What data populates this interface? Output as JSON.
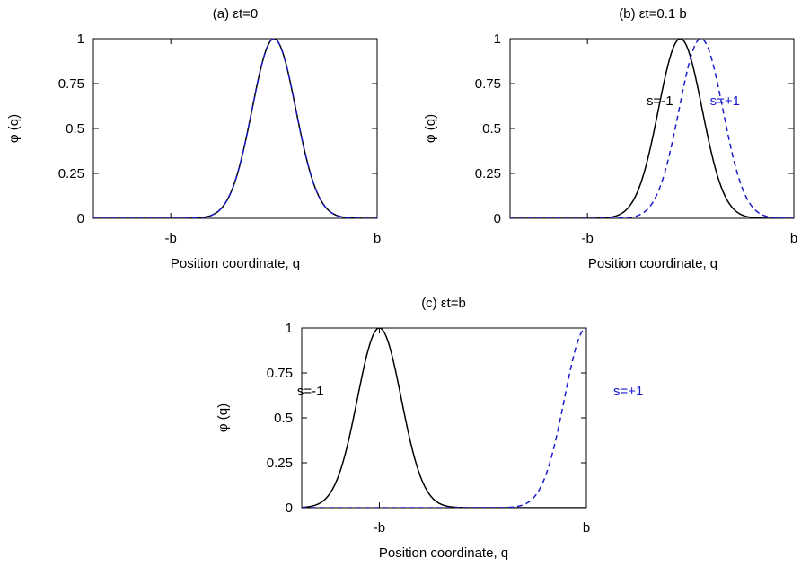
{
  "chart_data": [
    {
      "type": "line",
      "title": "(a) εt=0",
      "xlabel": "Position coordinate, q",
      "ylabel": "φ (q)",
      "xlim": [
        -1.75,
        1.0
      ],
      "ylim": [
        0,
        1
      ],
      "xticks": [
        {
          "value": -1,
          "label": "-b"
        },
        {
          "value": 1,
          "label": "b"
        }
      ],
      "yticks": [
        {
          "value": 0,
          "label": "0"
        },
        {
          "value": 0.25,
          "label": "0.25"
        },
        {
          "value": 0.5,
          "label": "0.5"
        },
        {
          "value": 0.75,
          "label": "0.75"
        },
        {
          "value": 1,
          "label": "1"
        }
      ],
      "grid": false,
      "gaussian_width": 0.3,
      "series": [
        {
          "name": "",
          "center": 0.0,
          "color": "#000000",
          "style": "solid"
        },
        {
          "name": "",
          "center": 0.0,
          "color": "#1a1acc",
          "style": "dashed"
        }
      ]
    },
    {
      "type": "line",
      "title": "(b) εt=0.1 b",
      "xlabel": "Position coordinate, q",
      "ylabel": "φ (q)",
      "xlim": [
        -1.75,
        1.0
      ],
      "ylim": [
        0,
        1
      ],
      "xticks": [
        {
          "value": -1,
          "label": "-b"
        },
        {
          "value": 1,
          "label": "b"
        }
      ],
      "yticks": [
        {
          "value": 0,
          "label": "0"
        },
        {
          "value": 0.25,
          "label": "0.25"
        },
        {
          "value": 0.5,
          "label": "0.5"
        },
        {
          "value": 0.75,
          "label": "0.75"
        },
        {
          "value": 1,
          "label": "1"
        }
      ],
      "grid": false,
      "gaussian_width": 0.3,
      "series": [
        {
          "name": "s=-1",
          "center": -0.1,
          "color": "#000000",
          "style": "solid"
        },
        {
          "name": "s=+1",
          "center": 0.1,
          "color": "#1a1acc",
          "style": "dashed"
        }
      ]
    },
    {
      "type": "line",
      "title": "(c) εt=b",
      "xlabel": "Position coordinate, q",
      "ylabel": "φ (q)",
      "xlim": [
        -1.75,
        1.0
      ],
      "ylim": [
        0,
        1
      ],
      "xticks": [
        {
          "value": -1,
          "label": "-b"
        },
        {
          "value": 1,
          "label": "b"
        }
      ],
      "yticks": [
        {
          "value": 0,
          "label": "0"
        },
        {
          "value": 0.25,
          "label": "0.25"
        },
        {
          "value": 0.5,
          "label": "0.5"
        },
        {
          "value": 0.75,
          "label": "0.75"
        },
        {
          "value": 1,
          "label": "1"
        }
      ],
      "grid": false,
      "gaussian_width": 0.3,
      "series": [
        {
          "name": "s=-1",
          "center": -1.0,
          "color": "#000000",
          "style": "solid"
        },
        {
          "name": "s=+1",
          "center": 1.0,
          "color": "#1a1acc",
          "style": "dashed"
        }
      ]
    }
  ]
}
